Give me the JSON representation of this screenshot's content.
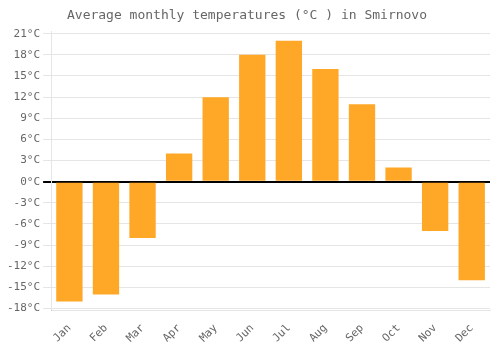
{
  "chart_data": {
    "type": "bar",
    "title": "Average monthly temperatures (°C ) in Smirnovo",
    "categories": [
      "Jan",
      "Feb",
      "Mar",
      "Apr",
      "May",
      "Jun",
      "Jul",
      "Aug",
      "Sep",
      "Oct",
      "Nov",
      "Dec"
    ],
    "values": [
      -17,
      -16,
      -8,
      4,
      12,
      18,
      20,
      16,
      11,
      2,
      -7,
      -14
    ],
    "color": "#FFA726",
    "ylim": [
      -18.3,
      21.3
    ],
    "yticks": [
      {
        "value": -18,
        "label": "-18°C"
      },
      {
        "value": -15,
        "label": "-15°C"
      },
      {
        "value": -12,
        "label": "-12°C"
      },
      {
        "value": -9,
        "label": "-9°C"
      },
      {
        "value": -6,
        "label": "-6°C"
      },
      {
        "value": -3,
        "label": "-3°C"
      },
      {
        "value": 0,
        "label": "0°C"
      },
      {
        "value": 3,
        "label": "3°C"
      },
      {
        "value": 6,
        "label": "6°C"
      },
      {
        "value": 9,
        "label": "9°C"
      },
      {
        "value": 12,
        "label": "12°C"
      },
      {
        "value": 15,
        "label": "15°C"
      },
      {
        "value": 18,
        "label": "18°C"
      },
      {
        "value": 21,
        "label": "21°C"
      }
    ],
    "grid": true
  }
}
